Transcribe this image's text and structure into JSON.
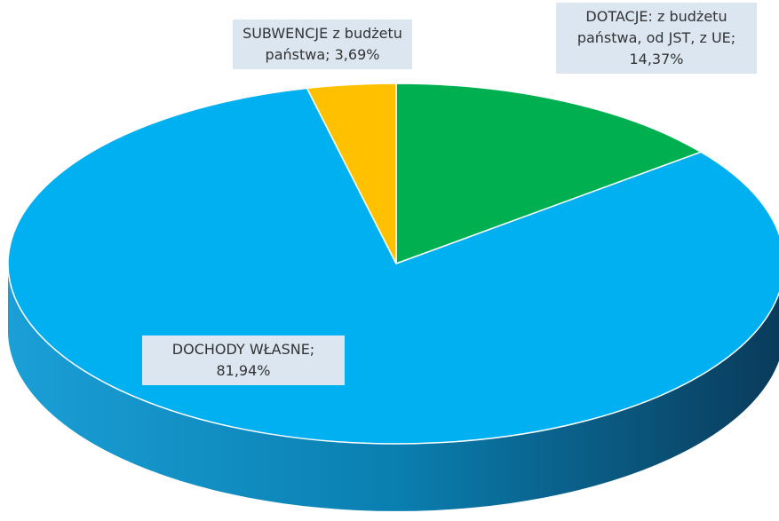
{
  "chart_data": {
    "type": "pie3d",
    "value_labels": [
      "DOCHODY WŁASNE; 81,94%",
      "DOTACJE: z budżetu państwa, od JST, z UE; 14,37%",
      "SUBWENCJE z budżetu państwa; 3,69%"
    ],
    "values": [
      81.94,
      14.37,
      3.69
    ],
    "colors": [
      "#00b0f0",
      "#00b050",
      "#ffc000"
    ]
  }
}
